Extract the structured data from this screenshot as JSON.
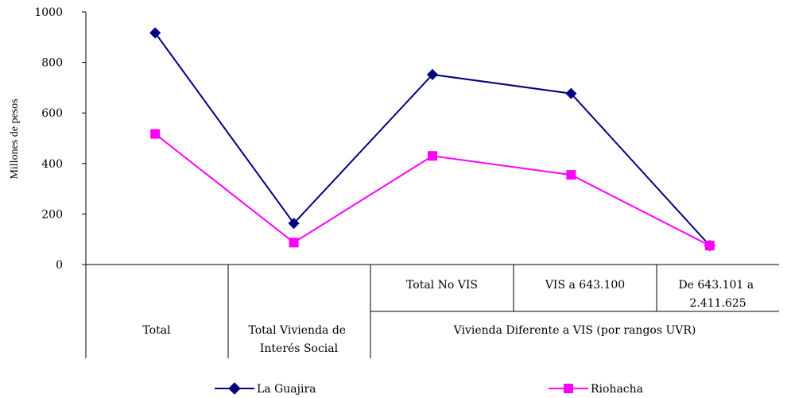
{
  "chart_data": {
    "type": "line",
    "ylabel": "Millones de pesos",
    "xlabel": "",
    "ylim": [
      0,
      1000
    ],
    "y_ticks": [
      "0",
      "200",
      "400",
      "600",
      "800",
      "1000"
    ],
    "categories": [
      "Total",
      "Total  Vivienda de Interés Social",
      "Total No VIS",
      "VIS a 643.100",
      "De 643.101 a 2.411.625"
    ],
    "category_labels": {
      "total": "Total",
      "vis": [
        "Total  Vivienda de",
        "Interés Social"
      ],
      "no_vis_total": "Total No VIS",
      "no_vis_range1": "VIS a 643.100",
      "no_vis_range2": [
        "De 643.101 a",
        "2.411.625"
      ],
      "group_no_vis": "Vivienda Diferente a VIS (por rangos UVR)"
    },
    "series": [
      {
        "name": "La Guajira",
        "color": "#000080",
        "marker": "diamond",
        "values": [
          917,
          163,
          752,
          677,
          75
        ]
      },
      {
        "name": "Riohacha",
        "color": "#FF00FF",
        "marker": "square",
        "values": [
          517,
          87,
          430,
          355,
          75
        ]
      }
    ],
    "grid": false,
    "legend": "bottom"
  }
}
